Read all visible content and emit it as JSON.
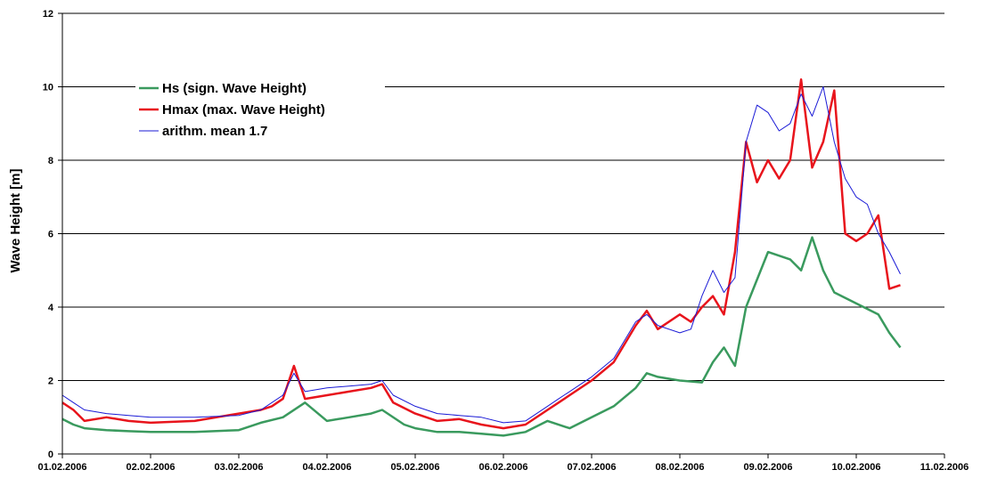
{
  "chart_data": {
    "type": "line",
    "title": "",
    "xlabel": "",
    "ylabel": "Wave Height [m]",
    "xlim": [
      "01.02.2006",
      "11.02.2006"
    ],
    "ylim": [
      0,
      12
    ],
    "x_ticks": [
      "01.02.2006",
      "02.02.2006",
      "03.02.2006",
      "04.02.2006",
      "05.02.2006",
      "06.02.2006",
      "07.02.2006",
      "08.02.2006",
      "09.02.2006",
      "10.02.2006",
      "11.02.2006"
    ],
    "y_ticks": [
      0,
      2,
      4,
      6,
      8,
      10,
      12
    ],
    "grid": "horizontal",
    "legend_position": "top-left",
    "series": [
      {
        "name": "Hs (sign. Wave Height)",
        "color": "#3a9a5e",
        "x": [
          "01.02.2006 00:00",
          "01.02.2006 03:00",
          "01.02.2006 06:00",
          "01.02.2006 12:00",
          "01.02.2006 18:00",
          "02.02.2006 00:00",
          "02.02.2006 12:00",
          "03.02.2006 00:00",
          "03.02.2006 06:00",
          "03.02.2006 12:00",
          "03.02.2006 18:00",
          "04.02.2006 00:00",
          "04.02.2006 06:00",
          "04.02.2006 12:00",
          "04.02.2006 15:00",
          "04.02.2006 21:00",
          "05.02.2006 00:00",
          "05.02.2006 06:00",
          "05.02.2006 12:00",
          "05.02.2006 18:00",
          "06.02.2006 00:00",
          "06.02.2006 06:00",
          "06.02.2006 12:00",
          "06.02.2006 18:00",
          "07.02.2006 00:00",
          "07.02.2006 06:00",
          "07.02.2006 12:00",
          "07.02.2006 15:00",
          "07.02.2006 18:00",
          "08.02.2006 00:00",
          "08.02.2006 06:00",
          "08.02.2006 09:00",
          "08.02.2006 12:00",
          "08.02.2006 15:00",
          "08.02.2006 18:00",
          "09.02.2006 00:00",
          "09.02.2006 06:00",
          "09.02.2006 09:00",
          "09.02.2006 12:00",
          "09.02.2006 15:00",
          "09.02.2006 18:00",
          "10.02.2006 00:00",
          "10.02.2006 06:00",
          "10.02.2006 09:00",
          "10.02.2006 12:00"
        ],
        "y": [
          0.95,
          0.8,
          0.7,
          0.65,
          0.62,
          0.6,
          0.6,
          0.65,
          0.85,
          1.0,
          1.4,
          0.9,
          1.0,
          1.1,
          1.2,
          0.8,
          0.7,
          0.6,
          0.6,
          0.55,
          0.5,
          0.6,
          0.9,
          0.7,
          1.0,
          1.3,
          1.8,
          2.2,
          2.1,
          2.0,
          1.95,
          2.5,
          2.9,
          2.4,
          4.0,
          5.5,
          5.3,
          5.0,
          5.9,
          5.0,
          4.4,
          4.1,
          3.8,
          3.3,
          2.9
        ]
      },
      {
        "name": "Hmax (max. Wave Height)",
        "color": "#e8141c",
        "x": [
          "01.02.2006 00:00",
          "01.02.2006 03:00",
          "01.02.2006 06:00",
          "01.02.2006 12:00",
          "01.02.2006 18:00",
          "02.02.2006 00:00",
          "02.02.2006 12:00",
          "03.02.2006 00:00",
          "03.02.2006 06:00",
          "03.02.2006 09:00",
          "03.02.2006 12:00",
          "03.02.2006 15:00",
          "03.02.2006 18:00",
          "04.02.2006 00:00",
          "04.02.2006 06:00",
          "04.02.2006 12:00",
          "04.02.2006 15:00",
          "04.02.2006 18:00",
          "05.02.2006 00:00",
          "05.02.2006 06:00",
          "05.02.2006 12:00",
          "05.02.2006 18:00",
          "06.02.2006 00:00",
          "06.02.2006 06:00",
          "06.02.2006 12:00",
          "06.02.2006 15:00",
          "06.02.2006 18:00",
          "07.02.2006 00:00",
          "07.02.2006 06:00",
          "07.02.2006 12:00",
          "07.02.2006 15:00",
          "07.02.2006 18:00",
          "08.02.2006 00:00",
          "08.02.2006 03:00",
          "08.02.2006 06:00",
          "08.02.2006 09:00",
          "08.02.2006 12:00",
          "08.02.2006 15:00",
          "08.02.2006 18:00",
          "08.02.2006 21:00",
          "09.02.2006 00:00",
          "09.02.2006 03:00",
          "09.02.2006 06:00",
          "09.02.2006 09:00",
          "09.02.2006 12:00",
          "09.02.2006 15:00",
          "09.02.2006 18:00",
          "09.02.2006 21:00",
          "10.02.2006 00:00",
          "10.02.2006 03:00",
          "10.02.2006 06:00",
          "10.02.2006 09:00",
          "10.02.2006 12:00"
        ],
        "y": [
          1.4,
          1.2,
          0.9,
          1.0,
          0.9,
          0.85,
          0.9,
          1.1,
          1.2,
          1.3,
          1.5,
          2.4,
          1.5,
          1.6,
          1.7,
          1.8,
          1.9,
          1.4,
          1.1,
          0.9,
          0.95,
          0.8,
          0.7,
          0.8,
          1.2,
          1.4,
          1.6,
          2.0,
          2.5,
          3.5,
          3.9,
          3.4,
          3.8,
          3.6,
          4.0,
          4.3,
          3.8,
          5.5,
          8.5,
          7.4,
          8.0,
          7.5,
          8.0,
          10.2,
          7.8,
          8.5,
          9.9,
          6.0,
          5.8,
          6.0,
          6.5,
          4.5,
          4.6
        ]
      },
      {
        "name": "arithm. mean 1.7",
        "color": "#1a1ad6",
        "x": [
          "01.02.2006 00:00",
          "01.02.2006 03:00",
          "01.02.2006 06:00",
          "01.02.2006 12:00",
          "01.02.2006 18:00",
          "02.02.2006 00:00",
          "02.02.2006 12:00",
          "03.02.2006 00:00",
          "03.02.2006 06:00",
          "03.02.2006 09:00",
          "03.02.2006 12:00",
          "03.02.2006 15:00",
          "03.02.2006 18:00",
          "04.02.2006 00:00",
          "04.02.2006 06:00",
          "04.02.2006 12:00",
          "04.02.2006 15:00",
          "04.02.2006 18:00",
          "05.02.2006 00:00",
          "05.02.2006 06:00",
          "05.02.2006 12:00",
          "05.02.2006 18:00",
          "06.02.2006 00:00",
          "06.02.2006 06:00",
          "06.02.2006 12:00",
          "06.02.2006 15:00",
          "06.02.2006 18:00",
          "07.02.2006 00:00",
          "07.02.2006 06:00",
          "07.02.2006 12:00",
          "07.02.2006 15:00",
          "07.02.2006 18:00",
          "08.02.2006 00:00",
          "08.02.2006 03:00",
          "08.02.2006 06:00",
          "08.02.2006 09:00",
          "08.02.2006 12:00",
          "08.02.2006 15:00",
          "08.02.2006 18:00",
          "08.02.2006 21:00",
          "09.02.2006 00:00",
          "09.02.2006 03:00",
          "09.02.2006 06:00",
          "09.02.2006 09:00",
          "09.02.2006 12:00",
          "09.02.2006 15:00",
          "09.02.2006 18:00",
          "09.02.2006 21:00",
          "10.02.2006 00:00",
          "10.02.2006 03:00",
          "10.02.2006 06:00",
          "10.02.2006 09:00",
          "10.02.2006 12:00"
        ],
        "y": [
          1.6,
          1.4,
          1.2,
          1.1,
          1.05,
          1.0,
          1.0,
          1.05,
          1.2,
          1.4,
          1.6,
          2.2,
          1.7,
          1.8,
          1.85,
          1.9,
          2.0,
          1.6,
          1.3,
          1.1,
          1.05,
          1.0,
          0.85,
          0.9,
          1.3,
          1.5,
          1.7,
          2.1,
          2.6,
          3.6,
          3.8,
          3.5,
          3.3,
          3.4,
          4.3,
          5.0,
          4.4,
          4.8,
          8.5,
          9.5,
          9.3,
          8.8,
          9.0,
          9.8,
          9.2,
          10.0,
          8.5,
          7.5,
          7.0,
          6.8,
          6.0,
          5.5,
          4.9
        ]
      }
    ]
  }
}
